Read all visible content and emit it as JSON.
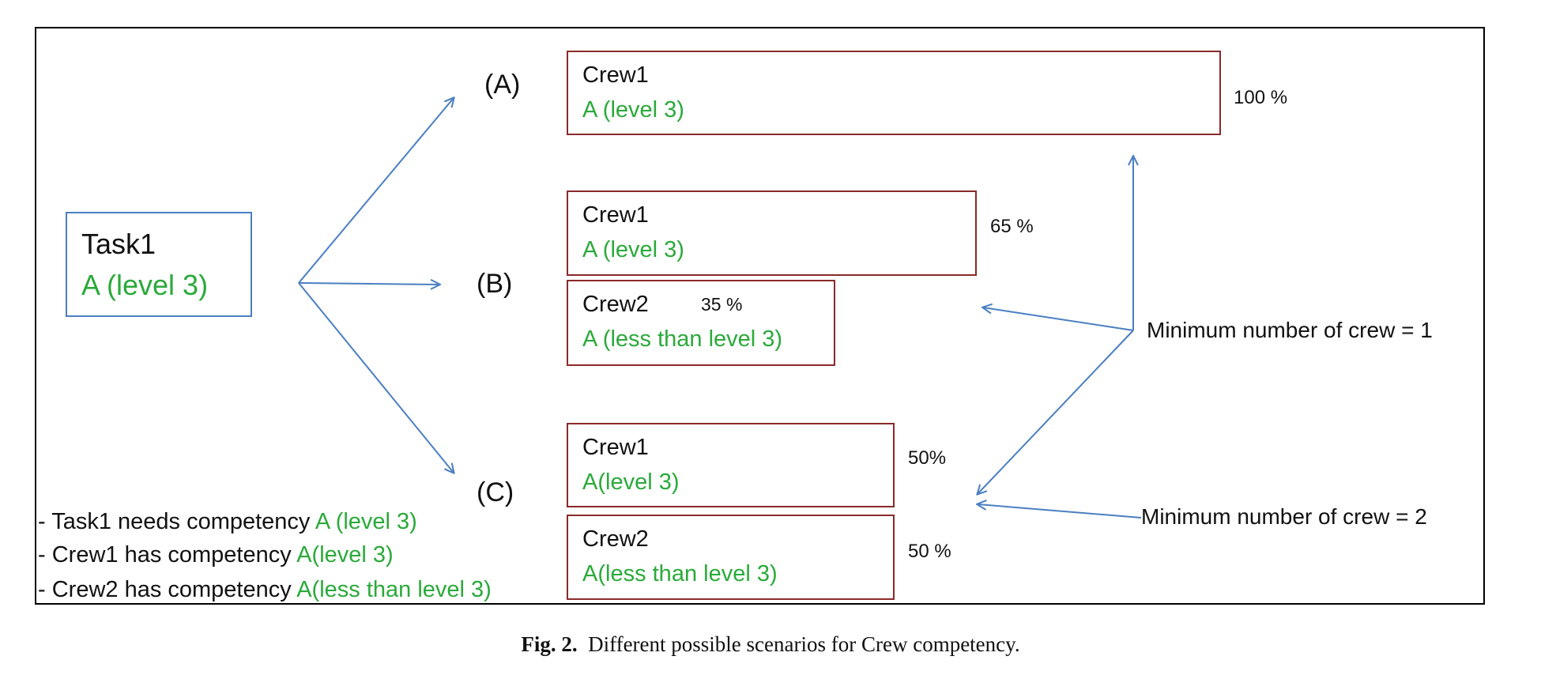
{
  "task": {
    "name": "Task1",
    "competency": "A (level 3)"
  },
  "scenarios": {
    "A": {
      "label": "(A)",
      "crew1": {
        "name": "Crew1",
        "competency": "A (level 3)",
        "share": "100 %"
      }
    },
    "B": {
      "label": "(B)",
      "crew1": {
        "name": "Crew1",
        "competency": "A (level 3)",
        "share": "65 %"
      },
      "crew2": {
        "name": "Crew2",
        "competency": "A (less than level 3)",
        "share": "35 %"
      }
    },
    "C": {
      "label": "(C)",
      "crew1": {
        "name": "Crew1",
        "competency": "A(level 3)",
        "share": "50%"
      },
      "crew2": {
        "name": "Crew2",
        "competency": "A(less than level 3)",
        "share": "50 %"
      }
    }
  },
  "constraints": {
    "min1": "Minimum number of crew = 1",
    "min2": "Minimum number of crew = 2"
  },
  "notes": [
    {
      "prefix": "- Task1 needs competency ",
      "value": "A (level 3)"
    },
    {
      "prefix": "- Crew1 has competency ",
      "value": "A(level 3)"
    },
    {
      "prefix": "- Crew2 has competency ",
      "value": "A(less than level 3)"
    }
  ],
  "caption": {
    "label": "Fig. 2.",
    "text": "Different possible scenarios for Crew competency."
  },
  "colors": {
    "arrow": "#4a7fc1",
    "crew_border": "#8b2a2a",
    "competency_text": "#2aaa3a",
    "task_border": "#4a7fc1"
  }
}
